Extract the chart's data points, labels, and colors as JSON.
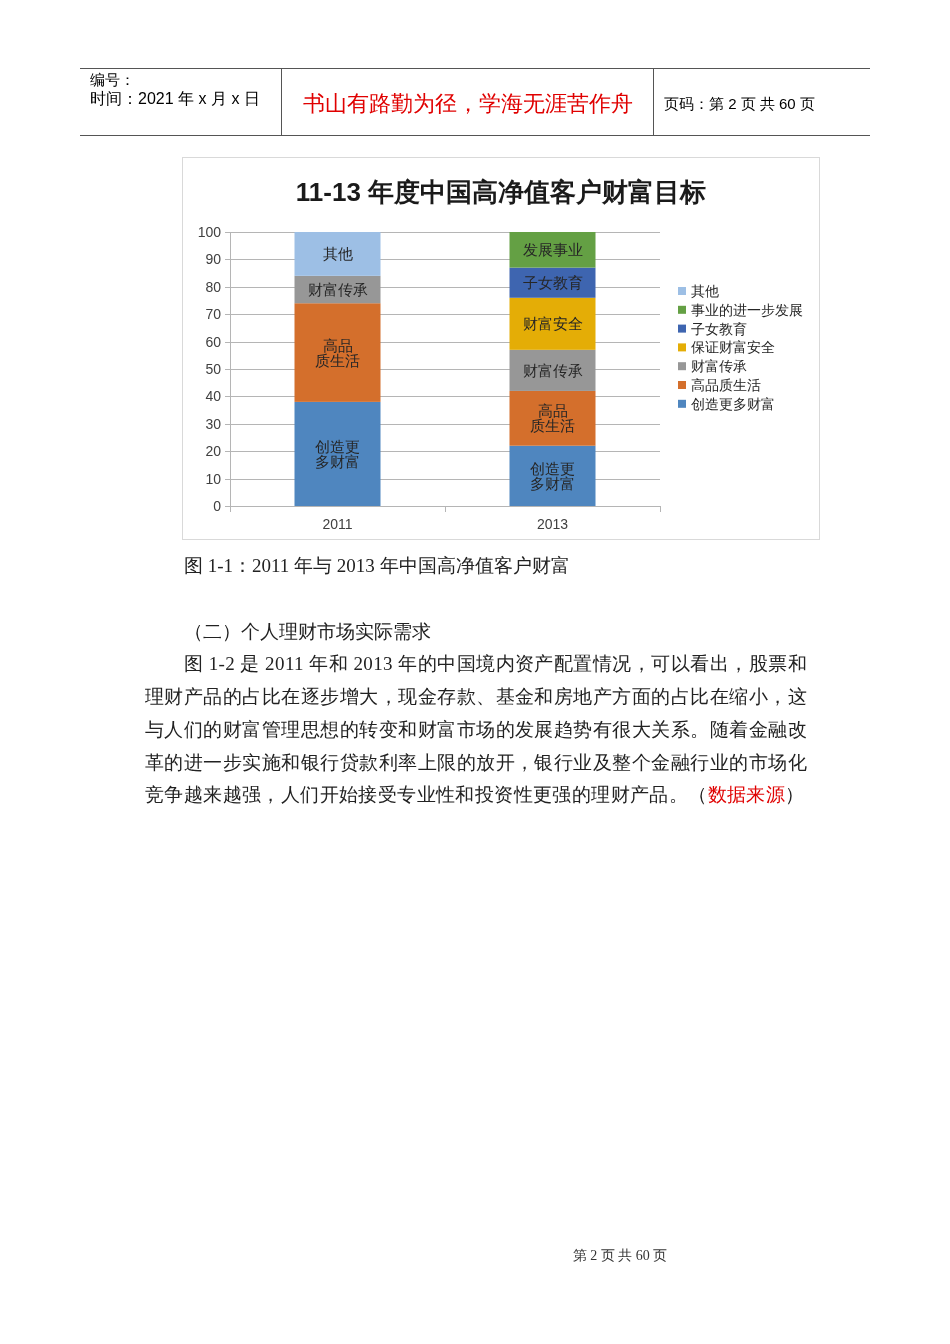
{
  "chart_data": {
    "type": "bar",
    "stacked": true,
    "title": "11-13 年度中国高净值客户财富目标",
    "categories": [
      "2011",
      "2013"
    ],
    "series": [
      {
        "name": "创造更多财富",
        "color": "#4f86bf",
        "values": [
          38,
          22
        ],
        "value_labels": [
          "创造更多财富",
          "创造更多财富"
        ]
      },
      {
        "name": "高品质生活",
        "color": "#d46f2c",
        "values": [
          36,
          20
        ],
        "value_labels": [
          "高品质生活",
          "高品质生活"
        ]
      },
      {
        "name": "财富传承",
        "color": "#979797",
        "values": [
          10,
          15
        ],
        "value_labels": [
          "财富传承",
          "财富传承"
        ]
      },
      {
        "name": "保证财富安全",
        "color": "#e4ad06",
        "values": [
          null,
          19
        ],
        "value_labels": [
          null,
          "财富安全"
        ]
      },
      {
        "name": "子女教育",
        "color": "#3e65b0",
        "values": [
          null,
          11
        ],
        "value_labels": [
          null,
          "子女教育"
        ]
      },
      {
        "name": "事业的进一步发展",
        "color": "#64a044",
        "values": [
          null,
          13
        ],
        "value_labels": [
          null,
          "发展事业"
        ]
      },
      {
        "name": "其他",
        "color": "#9dbfe5",
        "values": [
          16,
          null
        ],
        "value_labels": [
          "其他",
          null
        ]
      }
    ],
    "ylim": [
      0,
      100
    ],
    "yticks": [
      0,
      10,
      20,
      30,
      40,
      50,
      60,
      70,
      80,
      90,
      100
    ],
    "grid": "y",
    "legend": "right",
    "annotations": [
      "编号：",
      "时间：2021 年 x 月 x 日",
      "书山有路勤为径，学海无涯苦作舟",
      "页码：第 2 页 共 60 页",
      "图 1-1：2011 年与 2013 年中国高净值客户财富",
      "（二）个人理财市场实际需求",
      "图 1-2 是 2011 年和 2013 年的中国境内资产配置情况，可以看出，股票和",
      "理财产品的占比在逐步增大，现金存款、基金和房地产方面的占比在缩小，这",
      "与人们的财富管理思想的转变和财富市场的发展趋势有很大关系。随着金融改",
      "革的进一步实施和银行贷款利率上限的放开，银行业及整个金融行业的市场化",
      "竞争越来越强，人们开始接受专业性和投资性更强的理财产品。（",
      "数据来源",
      "）",
      "第 2 页 共 60 页"
    ]
  }
}
